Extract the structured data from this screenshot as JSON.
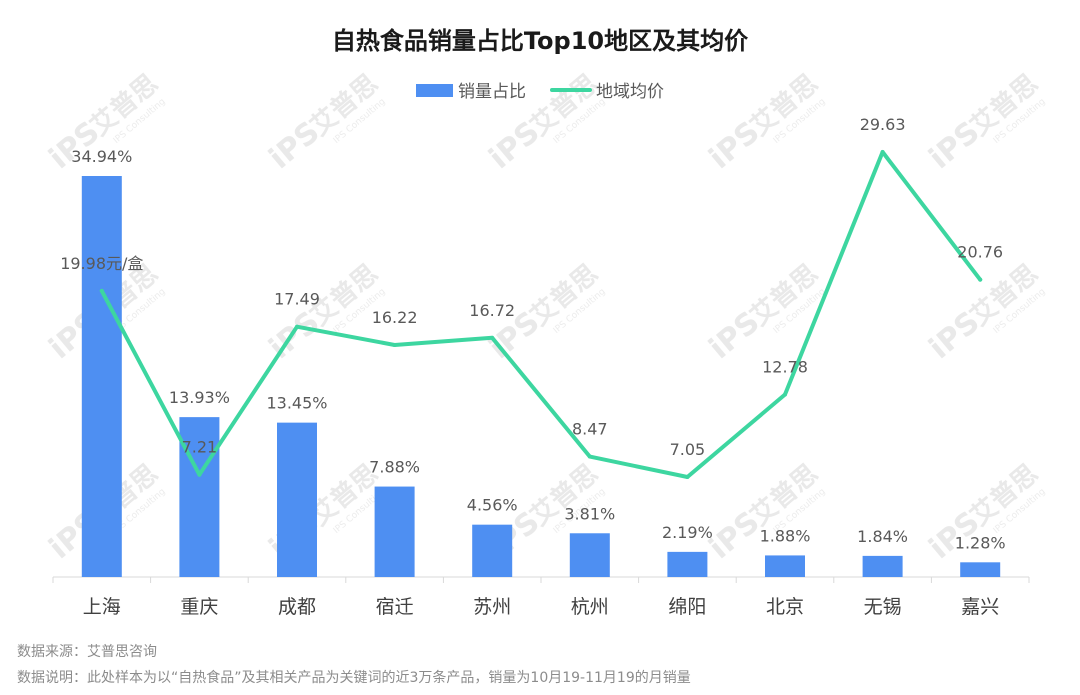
{
  "chart_data": {
    "type": "bar",
    "title": "自热食品销量占比Top10地区及其均价",
    "categories": [
      "上海",
      "重庆",
      "成都",
      "宿迁",
      "苏州",
      "杭州",
      "绵阳",
      "北京",
      "无锡",
      "嘉兴"
    ],
    "series": [
      {
        "name": "销量占比",
        "type": "bar",
        "color": "#4e8ff2",
        "values": [
          34.94,
          13.93,
          13.45,
          7.88,
          4.56,
          3.81,
          2.19,
          1.88,
          1.84,
          1.28
        ],
        "labels": [
          "34.94%",
          "13.93%",
          "13.45%",
          "7.88%",
          "4.56%",
          "3.81%",
          "2.19%",
          "1.88%",
          "1.84%",
          "1.28%"
        ]
      },
      {
        "name": "地域均价",
        "type": "line",
        "color": "#3dd6a0",
        "values": [
          19.98,
          7.21,
          17.49,
          16.22,
          16.72,
          8.47,
          7.05,
          12.78,
          29.63,
          20.76
        ],
        "labels": [
          "19.98元/盒",
          "7.21",
          "17.49",
          "16.22",
          "16.72",
          "8.47",
          "7.05",
          "12.78",
          "29.63",
          "20.76"
        ]
      }
    ],
    "legend_position": "top-center",
    "grid": false
  },
  "watermark": {
    "text": "艾普思",
    "sub": "IPS Consulting",
    "logo": "iPS"
  },
  "footer": {
    "source": "数据来源：艾普思咨询",
    "note": "数据说明：此处样本为以“自热食品”及其相关产品为关键词的近3万条产品，销量为10月19-11月19的月销量"
  }
}
